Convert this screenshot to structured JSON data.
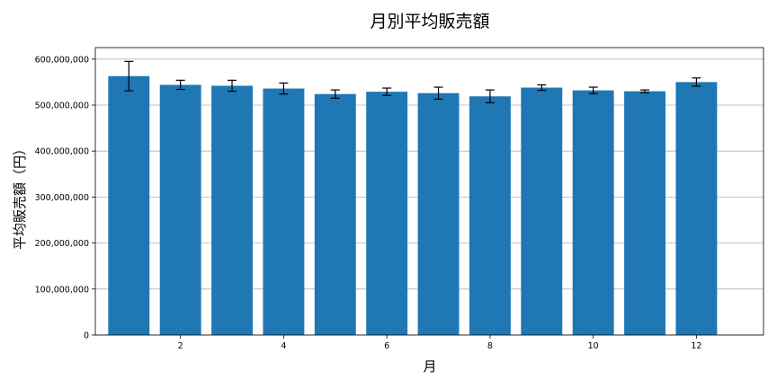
{
  "chart_data": {
    "type": "bar",
    "title": "月別平均販売額",
    "xlabel": "月",
    "ylabel": "平均販売額（円）",
    "x": [
      1,
      2,
      3,
      4,
      5,
      6,
      7,
      8,
      9,
      10,
      11,
      12
    ],
    "values": [
      563000000,
      544000000,
      542000000,
      536000000,
      524000000,
      529000000,
      526000000,
      519000000,
      538000000,
      532000000,
      530000000,
      550000000
    ],
    "errors": [
      32000000,
      10000000,
      12000000,
      12000000,
      9000000,
      8000000,
      13000000,
      14000000,
      6000000,
      7000000,
      3000000,
      9000000
    ],
    "xlim": [
      0.35,
      13.3
    ],
    "ylim": [
      0,
      625000000
    ],
    "xticks": [
      2,
      4,
      6,
      8,
      10,
      12
    ],
    "xtick_labels": [
      "2",
      "4",
      "6",
      "8",
      "10",
      "12"
    ],
    "yticks": [
      0,
      100000000,
      200000000,
      300000000,
      400000000,
      500000000,
      600000000
    ],
    "ytick_labels": [
      "0",
      "100,000,000",
      "200,000,000",
      "300,000,000",
      "400,000,000",
      "500,000,000",
      "600,000,000"
    ],
    "grid": "y",
    "bar_color": "#1f77b4",
    "grid_color": "#b0b0b0",
    "error_color": "#000000"
  }
}
